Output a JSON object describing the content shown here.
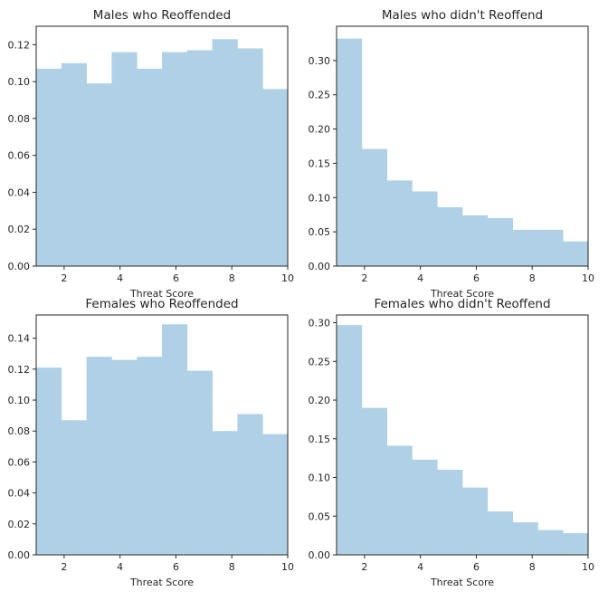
{
  "colors": {
    "bar": "#b0d1e5",
    "axis": "#262626",
    "background": "#ffffff"
  },
  "chart_data": [
    {
      "type": "bar",
      "title": "Males who Reoffended",
      "xlabel": "Threat Score",
      "ylabel": "",
      "xlim": [
        1,
        10
      ],
      "ylim": [
        0,
        0.13
      ],
      "bin_edges": [
        1,
        1.9,
        2.8,
        3.7,
        4.6,
        5.5,
        6.4,
        7.3,
        8.2,
        9.1,
        10
      ],
      "values": [
        0.107,
        0.11,
        0.099,
        0.116,
        0.107,
        0.116,
        0.117,
        0.123,
        0.118,
        0.096
      ],
      "xticks": [
        2,
        4,
        6,
        8,
        10
      ],
      "xtick_labels": [
        "2",
        "4",
        "6",
        "8",
        "10"
      ],
      "yticks": [
        0,
        0.02,
        0.04,
        0.06,
        0.08,
        0.1,
        0.12
      ],
      "ytick_labels": [
        "0.00",
        "0.02",
        "0.04",
        "0.06",
        "0.08",
        "0.10",
        "0.12"
      ],
      "grid": false
    },
    {
      "type": "bar",
      "title": "Males who didn't Reoffend",
      "xlabel": "Threat Score",
      "ylabel": "",
      "xlim": [
        1,
        10
      ],
      "ylim": [
        0,
        0.35
      ],
      "bin_edges": [
        1,
        1.9,
        2.8,
        3.7,
        4.6,
        5.5,
        6.4,
        7.3,
        8.2,
        9.1,
        10
      ],
      "values": [
        0.332,
        0.171,
        0.125,
        0.109,
        0.086,
        0.074,
        0.07,
        0.053,
        0.053,
        0.036
      ],
      "xticks": [
        2,
        4,
        6,
        8,
        10
      ],
      "xtick_labels": [
        "2",
        "4",
        "6",
        "8",
        "10"
      ],
      "yticks": [
        0,
        0.05,
        0.1,
        0.15,
        0.2,
        0.25,
        0.3
      ],
      "ytick_labels": [
        "0.00",
        "0.05",
        "0.10",
        "0.15",
        "0.20",
        "0.25",
        "0.30"
      ],
      "grid": false
    },
    {
      "type": "bar",
      "title": "Females who Reoffended",
      "xlabel": "Threat Score",
      "ylabel": "",
      "xlim": [
        1,
        10
      ],
      "ylim": [
        0,
        0.155
      ],
      "bin_edges": [
        1,
        1.9,
        2.8,
        3.7,
        4.6,
        5.5,
        6.4,
        7.3,
        8.2,
        9.1,
        10
      ],
      "values": [
        0.121,
        0.087,
        0.128,
        0.126,
        0.128,
        0.149,
        0.119,
        0.08,
        0.091,
        0.078
      ],
      "xticks": [
        2,
        4,
        6,
        8,
        10
      ],
      "xtick_labels": [
        "2",
        "4",
        "6",
        "8",
        "10"
      ],
      "yticks": [
        0,
        0.02,
        0.04,
        0.06,
        0.08,
        0.1,
        0.12,
        0.14
      ],
      "ytick_labels": [
        "0.00",
        "0.02",
        "0.04",
        "0.06",
        "0.08",
        "0.10",
        "0.12",
        "0.14"
      ],
      "grid": false
    },
    {
      "type": "bar",
      "title": "Females who didn't Reoffend",
      "xlabel": "Threat Score",
      "ylabel": "",
      "xlim": [
        1,
        10
      ],
      "ylim": [
        0,
        0.31
      ],
      "bin_edges": [
        1,
        1.9,
        2.8,
        3.7,
        4.6,
        5.5,
        6.4,
        7.3,
        8.2,
        9.1,
        10
      ],
      "values": [
        0.297,
        0.19,
        0.141,
        0.123,
        0.11,
        0.087,
        0.056,
        0.042,
        0.032,
        0.028
      ],
      "xticks": [
        2,
        4,
        6,
        8,
        10
      ],
      "xtick_labels": [
        "2",
        "4",
        "6",
        "8",
        "10"
      ],
      "yticks": [
        0,
        0.05,
        0.1,
        0.15,
        0.2,
        0.25,
        0.3
      ],
      "ytick_labels": [
        "0.00",
        "0.05",
        "0.10",
        "0.15",
        "0.20",
        "0.25",
        "0.30"
      ],
      "grid": false
    }
  ]
}
